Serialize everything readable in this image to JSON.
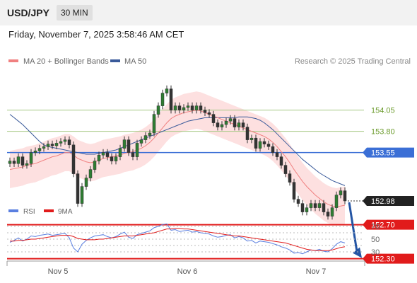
{
  "header": {
    "symbol": "USD/JPY",
    "timeframe": "30 MIN",
    "datetime": "Friday, November 7, 2025 3:58:46 AM CET"
  },
  "legend": {
    "ma20_label": "MA 20 + Bollinger Bands",
    "ma50_label": "MA 50",
    "copyright": "Research © 2025 Trading Central",
    "rsi_label": "RSI",
    "rsi_ma_label": "9MA"
  },
  "colors": {
    "ma20": "#f08080",
    "ma50": "#3a5a9a",
    "bollinger_fill": "#fde0e0",
    "candle": "#2e7d32",
    "target_arrow": "#2455a4",
    "resistance_line": "#a5c882",
    "pivot_line": "#3b6fd6",
    "support_line": "#e11b1b",
    "rsi": "#5a7fe0",
    "rsi_ma": "#e11b1b"
  },
  "chart_data": [
    {
      "type": "candlestick",
      "title": "USD/JPY 30 MIN",
      "x_ticks": [
        "Nov 5",
        "Nov 6",
        "Nov 7"
      ],
      "ylim": [
        152.1,
        154.35
      ],
      "levels": [
        {
          "value": 154.05,
          "label": "154.05",
          "kind": "resistance"
        },
        {
          "value": 153.8,
          "label": "153.80",
          "kind": "resistance"
        },
        {
          "value": 153.55,
          "label": "153.55",
          "kind": "pivot"
        },
        {
          "value": 152.98,
          "label": "152.98",
          "kind": "last"
        },
        {
          "value": 152.7,
          "label": "152.70",
          "kind": "support"
        },
        {
          "value": 152.3,
          "label": "152.30",
          "kind": "target"
        }
      ],
      "close": [
        153.45,
        153.42,
        153.5,
        153.4,
        153.42,
        153.55,
        153.57,
        153.6,
        153.62,
        153.65,
        153.63,
        153.66,
        153.68,
        153.7,
        153.64,
        153.3,
        152.95,
        153.15,
        153.25,
        153.35,
        153.45,
        153.52,
        153.55,
        153.5,
        153.45,
        153.5,
        153.6,
        153.7,
        153.55,
        153.5,
        153.66,
        153.7,
        153.75,
        153.78,
        154.0,
        154.1,
        154.25,
        154.3,
        154.05,
        154.1,
        154.05,
        154.08,
        154.1,
        154.05,
        154.1,
        154.05,
        154.02,
        154.0,
        153.9,
        153.85,
        153.88,
        153.92,
        153.95,
        153.85,
        153.9,
        153.85,
        153.7,
        153.72,
        153.6,
        153.68,
        153.65,
        153.62,
        153.55,
        153.5,
        153.4,
        153.3,
        153.2,
        153.0,
        152.95,
        152.85,
        152.9,
        152.95,
        152.9,
        152.95,
        152.85,
        152.8,
        152.9,
        153.05,
        153.1,
        152.98
      ],
      "ma20": [
        153.35,
        153.36,
        153.37,
        153.38,
        153.4,
        153.41,
        153.42,
        153.44,
        153.46,
        153.48,
        153.5,
        153.51,
        153.53,
        153.55,
        153.55,
        153.52,
        153.48,
        153.46,
        153.44,
        153.43,
        153.44,
        153.46,
        153.48,
        153.49,
        153.5,
        153.51,
        153.52,
        153.54,
        153.55,
        153.56,
        153.58,
        153.6,
        153.63,
        153.67,
        153.72,
        153.78,
        153.84,
        153.9,
        153.95,
        153.98,
        154.0,
        154.02,
        154.03,
        154.04,
        154.05,
        154.04,
        154.02,
        154.0,
        153.98,
        153.96,
        153.94,
        153.92,
        153.9,
        153.88,
        153.86,
        153.84,
        153.82,
        153.8,
        153.78,
        153.76,
        153.74,
        153.71,
        153.67,
        153.62,
        153.56,
        153.5,
        153.43,
        153.35,
        153.28,
        153.21,
        153.15,
        153.1,
        153.05,
        153.01,
        152.97,
        152.94,
        152.92,
        152.91,
        152.92,
        152.93
      ],
      "ma50": [
        154.0,
        153.96,
        153.92,
        153.88,
        153.83,
        153.78,
        153.73,
        153.68,
        153.64,
        153.62,
        153.61,
        153.6,
        153.59,
        153.58,
        153.57,
        153.56,
        153.55,
        153.54,
        153.53,
        153.53,
        153.53,
        153.54,
        153.55,
        153.56,
        153.57,
        153.58,
        153.6,
        153.62,
        153.64,
        153.66,
        153.68,
        153.7,
        153.72,
        153.74,
        153.76,
        153.78,
        153.8,
        153.82,
        153.84,
        153.86,
        153.88,
        153.9,
        153.92,
        153.93,
        153.94,
        153.95,
        153.96,
        153.96,
        153.96,
        153.96,
        153.96,
        153.96,
        153.96,
        153.96,
        153.97,
        153.97,
        153.97,
        153.96,
        153.95,
        153.93,
        153.9,
        153.86,
        153.82,
        153.77,
        153.72,
        153.67,
        153.62,
        153.57,
        153.52,
        153.47,
        153.43,
        153.39,
        153.35,
        153.31,
        153.28,
        153.25,
        153.22,
        153.2,
        153.18,
        153.16
      ],
      "bb_width": 0.22
    },
    {
      "type": "line",
      "title": "RSI",
      "ylim": [
        20,
        80
      ],
      "y_ticks": [
        70,
        50,
        30
      ],
      "x_ticks": [
        "Nov 5",
        "Nov 6",
        "Nov 7"
      ],
      "series": [
        {
          "name": "RSI",
          "values": [
            45,
            48,
            52,
            47,
            50,
            55,
            54,
            56,
            57,
            58,
            56,
            57,
            58,
            59,
            52,
            36,
            30,
            42,
            48,
            52,
            55,
            56,
            57,
            54,
            52,
            54,
            58,
            61,
            53,
            51,
            57,
            59,
            61,
            63,
            68,
            70,
            73,
            74,
            64,
            65,
            62,
            63,
            64,
            61,
            62,
            60,
            59,
            58,
            55,
            53,
            54,
            56,
            57,
            52,
            54,
            52,
            47,
            48,
            44,
            47,
            46,
            45,
            43,
            41,
            38,
            36,
            33,
            28,
            29,
            27,
            30,
            33,
            32,
            34,
            31,
            30,
            35,
            42,
            46,
            44
          ]
        },
        {
          "name": "9MA",
          "values": [
            47,
            47,
            48,
            48,
            49,
            50,
            50,
            51,
            52,
            53,
            54,
            55,
            56,
            56,
            56,
            54,
            51,
            50,
            49,
            49,
            49,
            50,
            50,
            51,
            52,
            53,
            54,
            55,
            55,
            55,
            56,
            57,
            58,
            59,
            60,
            62,
            64,
            66,
            66,
            67,
            67,
            66,
            66,
            65,
            64,
            63,
            62,
            61,
            60,
            59,
            58,
            57,
            56,
            55,
            55,
            54,
            53,
            52,
            51,
            50,
            49,
            48,
            47,
            46,
            45,
            44,
            42,
            40,
            38,
            36,
            34,
            33,
            32,
            32,
            32,
            32,
            33,
            35,
            37,
            38
          ]
        }
      ]
    }
  ]
}
